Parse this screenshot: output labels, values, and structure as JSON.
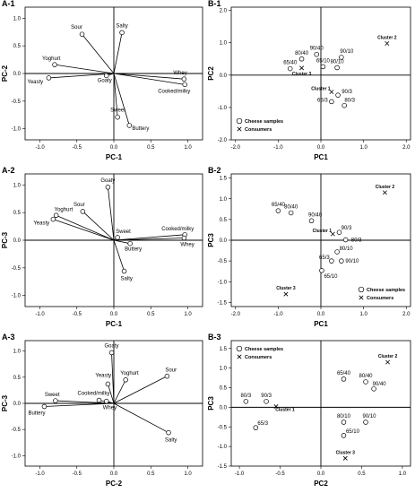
{
  "chart_data": [
    {
      "id": "A-1",
      "panel_label": "A-1",
      "type": "scatter",
      "style": "loading",
      "xlabel": "PC-1",
      "ylabel": "PC-2",
      "xlim": [
        -1.2,
        1.2
      ],
      "ylim": [
        -1.2,
        1.2
      ],
      "xticks": [
        -1.0,
        -0.5,
        0.0,
        0.5,
        1.0
      ],
      "yticks": [
        -1.0,
        -0.5,
        0.0,
        0.5,
        1.0
      ],
      "points": [
        {
          "label": "Sour",
          "x": -0.43,
          "y": 0.71
        },
        {
          "label": "Salty",
          "x": 0.11,
          "y": 0.74
        },
        {
          "label": "Yoghurt",
          "x": -0.8,
          "y": 0.16
        },
        {
          "label": "Yeasty",
          "x": -0.88,
          "y": -0.08
        },
        {
          "label": "Goaty",
          "x": -0.1,
          "y": -0.04
        },
        {
          "label": "Whey",
          "x": 0.95,
          "y": -0.1
        },
        {
          "label": "Cooked/milky",
          "x": 0.96,
          "y": -0.2
        },
        {
          "label": "Sweet",
          "x": 0.05,
          "y": -0.79
        },
        {
          "label": "Buttery",
          "x": 0.21,
          "y": -0.94
        }
      ]
    },
    {
      "id": "B-1",
      "panel_label": "B-1",
      "type": "scatter",
      "style": "scores",
      "xlabel": "PC1",
      "ylabel": "PC2",
      "xlim": [
        -2.1,
        2.1
      ],
      "ylim": [
        -2.0,
        2.1
      ],
      "xticks": [
        -2.0,
        -1.0,
        0.0,
        1.0,
        2.0
      ],
      "yticks": [
        -2.0,
        -1.0,
        0.0,
        1.0,
        2.0
      ],
      "points": [
        {
          "label": "80/40",
          "x": -0.45,
          "y": 0.5,
          "kind": "sample"
        },
        {
          "label": "90/40",
          "x": -0.1,
          "y": 0.64,
          "kind": "sample"
        },
        {
          "label": "90/10",
          "x": 0.48,
          "y": 0.55,
          "kind": "sample"
        },
        {
          "label": "65/40",
          "x": -0.72,
          "y": 0.2,
          "kind": "sample"
        },
        {
          "label": "65/10",
          "x": 0.05,
          "y": 0.26,
          "kind": "sample"
        },
        {
          "label": "80/10",
          "x": 0.38,
          "y": 0.23,
          "kind": "sample"
        },
        {
          "label": "90/3",
          "x": 0.4,
          "y": -0.62,
          "kind": "sample"
        },
        {
          "label": "65/3",
          "x": 0.25,
          "y": -0.82,
          "kind": "sample"
        },
        {
          "label": "80/3",
          "x": 0.55,
          "y": -0.94,
          "kind": "sample"
        },
        {
          "label": "Cluster 2",
          "x": 1.55,
          "y": 0.98,
          "kind": "consumer"
        },
        {
          "label": "Cluster 3",
          "x": -0.45,
          "y": 0.22,
          "kind": "consumer"
        },
        {
          "label": "Cluster 1",
          "x": 0.25,
          "y": -0.52,
          "kind": "consumer"
        }
      ],
      "legend": {
        "samples": "Cheese samples",
        "consumers": "Consumers",
        "position": "bottom-left"
      }
    },
    {
      "id": "A-2",
      "panel_label": "A-2",
      "type": "scatter",
      "style": "loading",
      "xlabel": "PC-1",
      "ylabel": "PC-3",
      "xlim": [
        -1.2,
        1.2
      ],
      "ylim": [
        -1.2,
        1.2
      ],
      "xticks": [
        -1.0,
        -0.5,
        0.0,
        0.5,
        1.0
      ],
      "yticks": [
        -1.0,
        -0.5,
        0.0,
        0.5,
        1.0
      ],
      "points": [
        {
          "label": "Goaty",
          "x": -0.08,
          "y": 0.96
        },
        {
          "label": "Sour",
          "x": -0.42,
          "y": 0.52
        },
        {
          "label": "Yoghurt",
          "x": -0.78,
          "y": 0.45
        },
        {
          "label": "Yeasty",
          "x": -0.82,
          "y": 0.38
        },
        {
          "label": "Sweet",
          "x": 0.05,
          "y": 0.05
        },
        {
          "label": "Buttery",
          "x": 0.22,
          "y": -0.06
        },
        {
          "label": "Cooked/milky",
          "x": 0.96,
          "y": 0.1
        },
        {
          "label": "Whey",
          "x": 0.95,
          "y": 0.04
        },
        {
          "label": "Salty",
          "x": 0.14,
          "y": -0.56
        }
      ]
    },
    {
      "id": "B-2",
      "panel_label": "B-2",
      "type": "scatter",
      "style": "scores",
      "xlabel": "PC1",
      "ylabel": "PC3",
      "xlim": [
        -2.1,
        2.1
      ],
      "ylim": [
        -1.6,
        1.6
      ],
      "xticks": [
        -2.0,
        -1.0,
        0.0,
        1.0,
        2.0
      ],
      "yticks": [
        -1.5,
        -1.0,
        -0.5,
        0.0,
        0.5,
        1.0,
        1.5
      ],
      "points": [
        {
          "label": "65/40",
          "x": -1.0,
          "y": 0.71,
          "kind": "sample"
        },
        {
          "label": "80/40",
          "x": -0.7,
          "y": 0.66,
          "kind": "sample"
        },
        {
          "label": "90/40",
          "x": -0.22,
          "y": 0.47,
          "kind": "sample"
        },
        {
          "label": "90/3",
          "x": 0.43,
          "y": 0.19,
          "kind": "sample"
        },
        {
          "label": "80/3",
          "x": 0.58,
          "y": 0.01,
          "kind": "sample"
        },
        {
          "label": "80/10",
          "x": 0.38,
          "y": -0.28,
          "kind": "sample"
        },
        {
          "label": "65/3",
          "x": 0.25,
          "y": -0.5,
          "kind": "sample"
        },
        {
          "label": "90/10",
          "x": 0.48,
          "y": -0.5,
          "kind": "sample"
        },
        {
          "label": "65/10",
          "x": 0.02,
          "y": -0.73,
          "kind": "sample"
        },
        {
          "label": "Cluster 2",
          "x": 1.5,
          "y": 1.15,
          "kind": "consumer"
        },
        {
          "label": "Cluster 1",
          "x": 0.28,
          "y": 0.15,
          "kind": "consumer"
        },
        {
          "label": "Cluster 3",
          "x": -0.82,
          "y": -1.3,
          "kind": "consumer"
        }
      ],
      "legend": {
        "samples": "Cheese samples",
        "consumers": "Consumers",
        "position": "bottom-right"
      }
    },
    {
      "id": "A-3",
      "panel_label": "A-3",
      "type": "scatter",
      "style": "loading",
      "xlabel": "PC-2",
      "ylabel": "PC-3",
      "xlim": [
        -1.2,
        1.2
      ],
      "ylim": [
        -1.2,
        1.2
      ],
      "xticks": [
        -1.0,
        -0.5,
        0.0,
        0.5,
        1.0
      ],
      "yticks": [
        -1.0,
        -0.5,
        0.0,
        0.5,
        1.0
      ],
      "points": [
        {
          "label": "Goaty",
          "x": -0.03,
          "y": 0.97
        },
        {
          "label": "Yeasty",
          "x": -0.08,
          "y": 0.37
        },
        {
          "label": "Yoghurt",
          "x": 0.16,
          "y": 0.45
        },
        {
          "label": "Sour",
          "x": 0.72,
          "y": 0.52
        },
        {
          "label": "Sweet",
          "x": -0.79,
          "y": 0.05
        },
        {
          "label": "Buttery",
          "x": -0.94,
          "y": -0.06
        },
        {
          "label": "Cooked/milky",
          "x": -0.2,
          "y": 0.06
        },
        {
          "label": "Whey",
          "x": -0.1,
          "y": 0.04
        },
        {
          "label": "Salty",
          "x": 0.74,
          "y": -0.56
        }
      ]
    },
    {
      "id": "B-3",
      "panel_label": "B-3",
      "type": "scatter",
      "style": "scores",
      "xlabel": "PC2",
      "ylabel": "PC3",
      "xlim": [
        -1.1,
        1.1
      ],
      "ylim": [
        -1.5,
        1.7
      ],
      "xticks": [
        -1.0,
        -0.5,
        0.0,
        0.5,
        1.0
      ],
      "yticks": [
        -1.5,
        -1.0,
        -0.5,
        0.0,
        0.5,
        1.0,
        1.5
      ],
      "points": [
        {
          "label": "65/40",
          "x": 0.28,
          "y": 0.72,
          "kind": "sample"
        },
        {
          "label": "80/40",
          "x": 0.55,
          "y": 0.65,
          "kind": "sample"
        },
        {
          "label": "90/40",
          "x": 0.65,
          "y": 0.47,
          "kind": "sample"
        },
        {
          "label": "80/3",
          "x": -0.92,
          "y": 0.15,
          "kind": "sample"
        },
        {
          "label": "90/3",
          "x": -0.67,
          "y": 0.15,
          "kind": "sample"
        },
        {
          "label": "65/3",
          "x": -0.8,
          "y": -0.52,
          "kind": "sample"
        },
        {
          "label": "80/10",
          "x": 0.28,
          "y": -0.38,
          "kind": "sample"
        },
        {
          "label": "90/10",
          "x": 0.55,
          "y": -0.38,
          "kind": "sample"
        },
        {
          "label": "65/10",
          "x": 0.28,
          "y": -0.72,
          "kind": "sample"
        },
        {
          "label": "Cluster 2",
          "x": 0.82,
          "y": 1.15,
          "kind": "consumer"
        },
        {
          "label": "Cluster 1",
          "x": -0.55,
          "y": 0.02,
          "kind": "consumer"
        },
        {
          "label": "Cluster 3",
          "x": 0.3,
          "y": -1.3,
          "kind": "consumer"
        }
      ],
      "legend": {
        "samples": "Cheese samples",
        "consumers": "Consumers",
        "position": "top-left"
      }
    }
  ]
}
